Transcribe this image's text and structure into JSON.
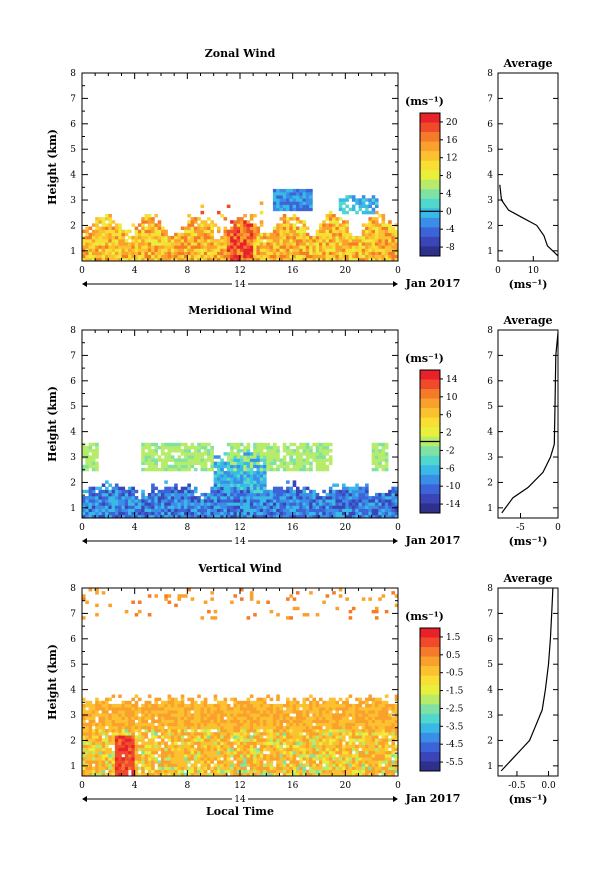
{
  "chart_data": [
    {
      "type": "heatmap",
      "title": "Zonal Wind",
      "ylabel": "Height (km)",
      "date_label": "Jan 2017",
      "day_label": "14",
      "x_ticks": [
        "0",
        "4",
        "8",
        "12",
        "16",
        "20",
        "0"
      ],
      "y_ticks": [
        "1",
        "2",
        "3",
        "4",
        "5",
        "6",
        "7",
        "8"
      ],
      "xlim": [
        0,
        24
      ],
      "ylim": [
        0.6,
        8
      ],
      "colorbar": {
        "unit": "(ms⁻¹)",
        "ticks": [
          "20",
          "16",
          "12",
          "8",
          "4",
          "0",
          "-4",
          "-8"
        ],
        "range": [
          -10,
          22
        ],
        "zero_line": 0
      },
      "profile": {
        "title": "Average",
        "xlabel": "(ms⁻¹)",
        "x_ticks": [
          "0",
          "10"
        ],
        "xlim": [
          0,
          17
        ],
        "ylim": [
          0.6,
          8
        ],
        "points": [
          [
            17,
            0.8
          ],
          [
            14,
            1.2
          ],
          [
            13,
            1.6
          ],
          [
            11,
            2.0
          ],
          [
            7,
            2.3
          ],
          [
            3,
            2.6
          ],
          [
            1,
            3.0
          ],
          [
            0.5,
            3.6
          ]
        ]
      }
    },
    {
      "type": "heatmap",
      "title": "Meridional Wind",
      "ylabel": "Height (km)",
      "date_label": "Jan 2017",
      "day_label": "14",
      "x_ticks": [
        "0",
        "4",
        "8",
        "12",
        "16",
        "20",
        "0"
      ],
      "y_ticks": [
        "1",
        "2",
        "3",
        "4",
        "5",
        "6",
        "7",
        "8"
      ],
      "xlim": [
        0,
        24
      ],
      "ylim": [
        0.6,
        8
      ],
      "colorbar": {
        "unit": "(ms⁻¹)",
        "ticks": [
          "14",
          "10",
          "6",
          "2",
          "-2",
          "-6",
          "-10",
          "-14"
        ],
        "range": [
          -16,
          16
        ],
        "zero_line": 0
      },
      "profile": {
        "title": "Average",
        "xlabel": "(ms⁻¹)",
        "x_ticks": [
          "-5",
          "0"
        ],
        "xlim": [
          -8,
          0
        ],
        "ylim": [
          0.6,
          8
        ],
        "points": [
          [
            -7.5,
            0.8
          ],
          [
            -6,
            1.4
          ],
          [
            -4,
            1.8
          ],
          [
            -2,
            2.4
          ],
          [
            -1,
            3.0
          ],
          [
            -0.5,
            3.5
          ],
          [
            -0.4,
            5.0
          ],
          [
            -0.3,
            7.0
          ],
          [
            0,
            7.9
          ]
        ]
      }
    },
    {
      "type": "heatmap",
      "title": "Vertical Wind",
      "ylabel": "Height (km)",
      "xlabel": "Local Time",
      "date_label": "Jan 2017",
      "day_label": "14",
      "x_ticks": [
        "0",
        "4",
        "8",
        "12",
        "16",
        "20",
        "0"
      ],
      "y_ticks": [
        "1",
        "2",
        "3",
        "4",
        "5",
        "6",
        "7",
        "8"
      ],
      "xlim": [
        0,
        24
      ],
      "ylim": [
        0.6,
        8
      ],
      "colorbar": {
        "unit": "(ms⁻¹)",
        "ticks": [
          "1.5",
          "0.5",
          "-0.5",
          "-1.5",
          "-2.5",
          "-3.5",
          "-4.5",
          "-5.5"
        ],
        "range": [
          -6,
          2
        ]
      },
      "profile": {
        "title": "Average",
        "xlabel": "(ms⁻¹)",
        "x_ticks": [
          "-0.5",
          "0.0"
        ],
        "xlim": [
          -0.8,
          0.15
        ],
        "ylim": [
          0.6,
          8
        ],
        "points": [
          [
            -0.75,
            0.8
          ],
          [
            -0.6,
            1.2
          ],
          [
            -0.45,
            1.6
          ],
          [
            -0.3,
            2.0
          ],
          [
            -0.2,
            2.6
          ],
          [
            -0.1,
            3.2
          ],
          [
            -0.05,
            4.0
          ],
          [
            0.0,
            5.0
          ],
          [
            0.03,
            6.0
          ],
          [
            0.05,
            7.0
          ],
          [
            0.07,
            8.0
          ]
        ]
      }
    }
  ]
}
